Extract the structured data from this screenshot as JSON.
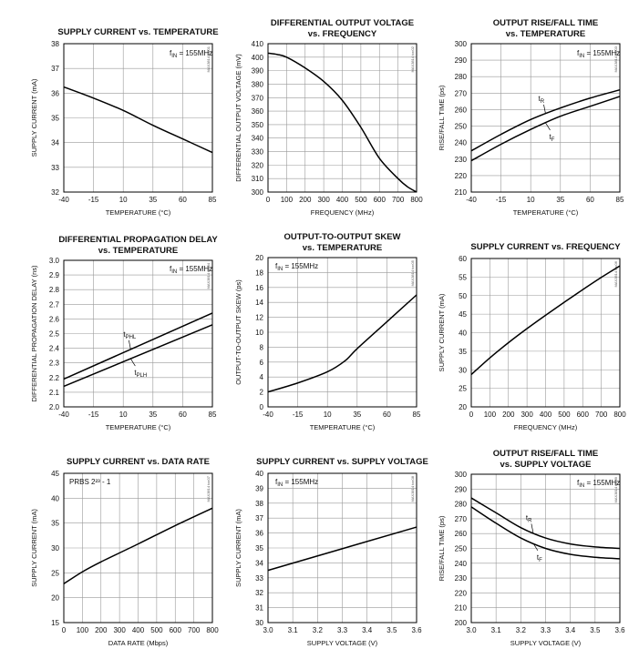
{
  "chart_data": [
    {
      "type": "line",
      "title": "SUPPLY CURRENT vs. TEMPERATURE",
      "xlabel": "TEMPERATURE (°C)",
      "ylabel": "SUPPLY CURRENT (mA)",
      "xlim": [
        -40,
        85
      ],
      "ylim": [
        32,
        38
      ],
      "xticks": [
        -40,
        -15,
        10,
        35,
        60,
        85
      ],
      "yticks": [
        32,
        33,
        34,
        35,
        36,
        37,
        38
      ],
      "grid": true,
      "annotation": "fIN = 155MHz",
      "tag": "MAX3814 toc01",
      "series": [
        {
          "x": [
            -40,
            -15,
            10,
            35,
            60,
            85
          ],
          "y": [
            36.25,
            35.8,
            35.3,
            34.7,
            34.15,
            33.6
          ]
        }
      ]
    },
    {
      "type": "line",
      "title": "DIFFERENTIAL OUTPUT VOLTAGE vs. FREQUENCY",
      "xlabel": "FREQUENCY (MHz)",
      "ylabel": "DIFFERENTIAL OUTPUT VOLTAGE (mV)",
      "xlim": [
        0,
        800
      ],
      "ylim": [
        300,
        410
      ],
      "xticks": [
        0,
        100,
        200,
        300,
        400,
        500,
        600,
        700,
        800
      ],
      "yticks": [
        300,
        310,
        320,
        330,
        340,
        350,
        360,
        370,
        380,
        390,
        400,
        410
      ],
      "grid": true,
      "tag": "MAX3814 toc02",
      "series": [
        {
          "x": [
            0,
            50,
            100,
            200,
            300,
            400,
            500,
            600,
            700,
            750,
            800
          ],
          "y": [
            403,
            402,
            400,
            392,
            382,
            368,
            348,
            325,
            310,
            304,
            300
          ]
        }
      ]
    },
    {
      "type": "line",
      "title": "OUTPUT RISE/FALL TIME vs. TEMPERATURE",
      "xlabel": "TEMPERATURE (°C)",
      "ylabel": "RISE/FALL TIME (ps)",
      "xlim": [
        -40,
        85
      ],
      "ylim": [
        210,
        300
      ],
      "xticks": [
        -40,
        -15,
        10,
        35,
        60,
        85
      ],
      "yticks": [
        210,
        220,
        230,
        240,
        250,
        260,
        270,
        280,
        290,
        300
      ],
      "grid": true,
      "annotation": "fIN = 155MHz",
      "tag": "MAX3814 toc03",
      "series": [
        {
          "name": "tR",
          "x": [
            -40,
            -15,
            10,
            35,
            60,
            85
          ],
          "y": [
            235,
            245,
            254,
            261,
            267,
            272
          ]
        },
        {
          "name": "tF",
          "x": [
            -40,
            -15,
            10,
            35,
            60,
            85
          ],
          "y": [
            229,
            239,
            248,
            256,
            262,
            268
          ]
        }
      ]
    },
    {
      "type": "line",
      "title": "DIFFERENTIAL PROPAGATION DELAY vs. TEMPERATURE",
      "xlabel": "TEMPERATURE (°C)",
      "ylabel": "DIFFERENTIAL PROPAGATION DELAY (ns)",
      "xlim": [
        -40,
        85
      ],
      "ylim": [
        2.0,
        3.0
      ],
      "xticks": [
        -40,
        -15,
        10,
        35,
        60,
        85
      ],
      "yticks": [
        2.0,
        2.1,
        2.2,
        2.3,
        2.4,
        2.5,
        2.6,
        2.7,
        2.8,
        2.9,
        3.0
      ],
      "grid": true,
      "annotation": "fIN = 155MHz",
      "tag": "MAX3814 toc04",
      "series": [
        {
          "name": "tPHL",
          "x": [
            -40,
            85
          ],
          "y": [
            2.19,
            2.64
          ]
        },
        {
          "name": "tPLH",
          "x": [
            -40,
            85
          ],
          "y": [
            2.14,
            2.56
          ]
        }
      ]
    },
    {
      "type": "line",
      "title": "OUTPUT-TO-OUTPUT SKEW vs. TEMPERATURE",
      "xlabel": "TEMPERATURE (°C)",
      "ylabel": "OUTPUT-TO-OUTPUT SKEW (ps)",
      "xlim": [
        -40,
        85
      ],
      "ylim": [
        0,
        20
      ],
      "xticks": [
        -40,
        -15,
        10,
        35,
        60,
        85
      ],
      "yticks": [
        0,
        2,
        4,
        6,
        8,
        10,
        12,
        14,
        16,
        18,
        20
      ],
      "grid": true,
      "annotation": "fIN = 155MHz",
      "tag": "MAX3814 toc05",
      "series": [
        {
          "x": [
            -40,
            -15,
            10,
            25,
            35,
            60,
            85
          ],
          "y": [
            2.0,
            3.2,
            4.7,
            6.2,
            7.8,
            11.4,
            15.0
          ]
        }
      ]
    },
    {
      "type": "line",
      "title": "SUPPLY CURRENT vs. FREQUENCY",
      "xlabel": "FREQUENCY (MHz)",
      "ylabel": "SUPPLY CURRENT (mA)",
      "xlim": [
        0,
        800
      ],
      "ylim": [
        20,
        60
      ],
      "xticks": [
        0,
        100,
        200,
        300,
        400,
        500,
        600,
        700,
        800
      ],
      "yticks": [
        20,
        25,
        30,
        35,
        40,
        45,
        50,
        55,
        60
      ],
      "grid": true,
      "tag": "MAX3814 toc06",
      "series": [
        {
          "x": [
            0,
            100,
            200,
            300,
            400,
            500,
            600,
            700,
            800
          ],
          "y": [
            28.7,
            33.2,
            37.3,
            41.1,
            44.7,
            48.2,
            51.6,
            54.9,
            58.0
          ]
        }
      ]
    },
    {
      "type": "line",
      "title": "SUPPLY CURRENT vs. DATA RATE",
      "xlabel": "DATA RATE (Mbps)",
      "ylabel": "SUPPLY CURRENT (mA)",
      "xlim": [
        0,
        800
      ],
      "ylim": [
        15,
        45
      ],
      "xticks": [
        0,
        100,
        200,
        300,
        400,
        500,
        600,
        700,
        800
      ],
      "yticks": [
        15,
        20,
        25,
        30,
        35,
        40,
        45
      ],
      "grid": true,
      "annotation": "PRBS 2²³ - 1",
      "tag": "MAX3814 toc07",
      "series": [
        {
          "x": [
            0,
            100,
            200,
            400,
            600,
            800
          ],
          "y": [
            22.8,
            25.2,
            27.2,
            30.8,
            34.5,
            38.0
          ]
        }
      ]
    },
    {
      "type": "line",
      "title": "SUPPLY CURRENT vs. SUPPLY VOLTAGE",
      "xlabel": "SUPPLY VOLTAGE (V)",
      "ylabel": "SUPPLY CURRENT (mA)",
      "xlim": [
        3.0,
        3.6
      ],
      "ylim": [
        30,
        40
      ],
      "xticks": [
        3.0,
        3.1,
        3.2,
        3.3,
        3.4,
        3.5,
        3.6
      ],
      "yticks": [
        30,
        31,
        32,
        33,
        34,
        35,
        36,
        37,
        38,
        39,
        40
      ],
      "grid": true,
      "annotation": "fIN = 155MHz",
      "tag": "MAX3814 toc08",
      "series": [
        {
          "x": [
            3.0,
            3.6
          ],
          "y": [
            33.5,
            36.4
          ]
        }
      ]
    },
    {
      "type": "line",
      "title": "OUTPUT RISE/FALL TIME vs. SUPPLY VOLTAGE",
      "xlabel": "SUPPLY VOLTAGE (V)",
      "ylabel": "RISE/FALL TIME (ps)",
      "xlim": [
        3.0,
        3.6
      ],
      "ylim": [
        200,
        300
      ],
      "xticks": [
        3.0,
        3.1,
        3.2,
        3.3,
        3.4,
        3.5,
        3.6
      ],
      "yticks": [
        200,
        210,
        220,
        230,
        240,
        250,
        260,
        270,
        280,
        290,
        300
      ],
      "grid": true,
      "annotation": "fIN = 155MHz",
      "tag": "MAX3814 toc09",
      "series": [
        {
          "name": "tR",
          "x": [
            3.0,
            3.1,
            3.2,
            3.3,
            3.4,
            3.5,
            3.6
          ],
          "y": [
            284,
            274,
            264,
            257,
            253,
            251,
            250
          ]
        },
        {
          "name": "tF",
          "x": [
            3.0,
            3.1,
            3.2,
            3.3,
            3.4,
            3.5,
            3.6
          ],
          "y": [
            278,
            267,
            257,
            250,
            246,
            244,
            243
          ]
        }
      ]
    }
  ]
}
